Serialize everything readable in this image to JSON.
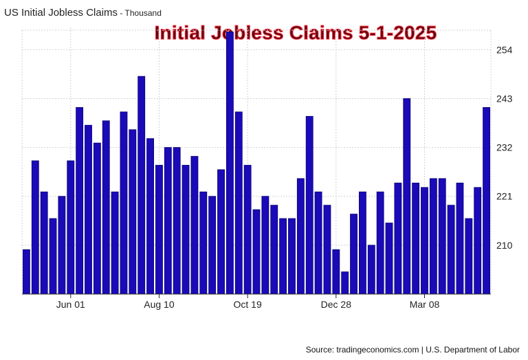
{
  "header": {
    "title": "US Initial Jobless Claims",
    "separator": " - ",
    "units": "Thousand"
  },
  "overlay_title": "Initial Jobless Claims 5-1-2025",
  "footer": {
    "source": "Source: tradingeconomics.com | U.S. Department of Labor"
  },
  "colors": {
    "bar": "#1a0ab8",
    "bar_outline": "#0a0470",
    "grid": "#d2d2d2",
    "axis": "#222222"
  },
  "chart_data": {
    "type": "bar",
    "title": "US Initial Jobless Claims",
    "ylabel": "Thousand",
    "ylim": [
      199,
      259
    ],
    "y_axis_side": "right",
    "grid": true,
    "y_ticks": [
      "210",
      "221",
      "232",
      "243",
      "254"
    ],
    "x_tick_labels": [
      {
        "label": "Jun 01",
        "index": 5
      },
      {
        "label": "Aug 10",
        "index": 15
      },
      {
        "label": "Oct 19",
        "index": 25
      },
      {
        "label": "Dec 28",
        "index": 35
      },
      {
        "label": "Mar 08",
        "index": 45
      }
    ],
    "values": [
      209,
      229,
      222,
      216,
      221,
      229,
      241,
      237,
      233,
      238,
      222,
      240,
      236,
      248,
      234,
      228,
      232,
      232,
      228,
      230,
      222,
      221,
      227,
      258,
      240,
      228,
      218,
      221,
      219,
      216,
      216,
      225,
      239,
      222,
      219,
      209,
      204,
      217,
      222,
      210,
      222,
      215,
      224,
      243,
      224,
      223,
      225,
      225,
      219,
      224,
      216,
      223,
      241
    ]
  }
}
